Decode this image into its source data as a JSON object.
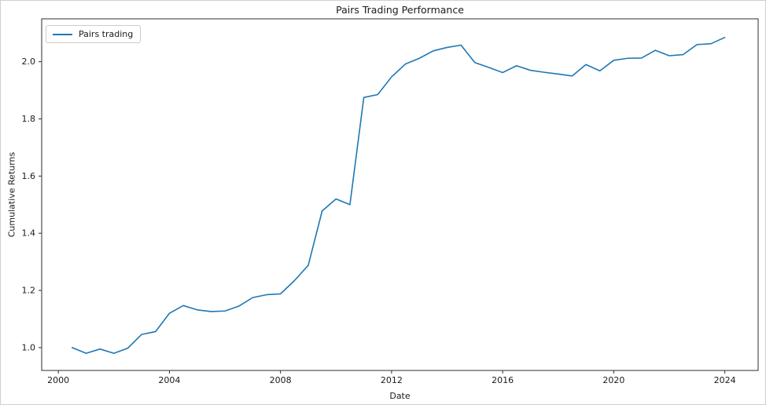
{
  "figure": {
    "background": "#ffffff",
    "border_color": "#cfcfcf"
  },
  "chart_data": {
    "type": "line",
    "title": "Pairs Trading Performance",
    "xlabel": "Date",
    "ylabel": "Cumulative Returns",
    "grid": false,
    "legend": {
      "position": "upper-left",
      "entries": [
        {
          "label": "Pairs trading",
          "color": "#1f77b4"
        }
      ]
    },
    "xlim": [
      1999.4,
      2025.2
    ],
    "ylim": [
      0.92,
      2.15
    ],
    "x_ticks": [
      2000,
      2004,
      2008,
      2012,
      2016,
      2020,
      2024
    ],
    "y_ticks": [
      1.0,
      1.2,
      1.4,
      1.6,
      1.8,
      2.0
    ],
    "axis_color": "#2e2e2e",
    "series": [
      {
        "name": "Pairs trading",
        "color": "#1f77b4",
        "frequency": "semi-annual",
        "x": [
          2000.5,
          2001.0,
          2001.5,
          2002.0,
          2002.5,
          2003.0,
          2003.5,
          2004.0,
          2004.5,
          2005.0,
          2005.5,
          2006.0,
          2006.5,
          2007.0,
          2007.5,
          2008.0,
          2008.5,
          2009.0,
          2009.5,
          2010.0,
          2010.5,
          2011.0,
          2011.5,
          2012.0,
          2012.5,
          2013.0,
          2013.5,
          2014.0,
          2014.5,
          2015.0,
          2015.5,
          2016.0,
          2016.5,
          2017.0,
          2017.5,
          2018.0,
          2018.5,
          2019.0,
          2019.5,
          2020.0,
          2020.5,
          2021.0,
          2021.5,
          2022.0,
          2022.5,
          2023.0,
          2023.5,
          2024.0
        ],
        "values": [
          1.0,
          0.98,
          0.995,
          0.98,
          0.998,
          1.046,
          1.056,
          1.12,
          1.147,
          1.132,
          1.126,
          1.128,
          1.145,
          1.175,
          1.185,
          1.188,
          1.234,
          1.288,
          1.478,
          1.52,
          1.5,
          1.875,
          1.885,
          1.947,
          1.992,
          2.012,
          2.038,
          2.05,
          2.058,
          1.997,
          1.98,
          1.962,
          1.986,
          1.97,
          1.963,
          1.957,
          1.95,
          1.99,
          1.968,
          2.005,
          2.012,
          2.013,
          2.04,
          2.021,
          2.025,
          2.06,
          2.063,
          2.085
        ]
      }
    ]
  }
}
